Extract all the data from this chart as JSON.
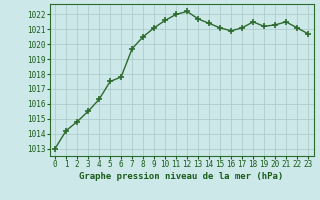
{
  "x": [
    0,
    1,
    2,
    3,
    4,
    5,
    6,
    7,
    8,
    9,
    10,
    11,
    12,
    13,
    14,
    15,
    16,
    17,
    18,
    19,
    20,
    21,
    22,
    23
  ],
  "y": [
    1013.0,
    1014.2,
    1014.8,
    1015.5,
    1016.3,
    1017.5,
    1017.8,
    1019.7,
    1020.5,
    1021.1,
    1021.6,
    1022.0,
    1022.2,
    1021.7,
    1021.4,
    1021.1,
    1020.9,
    1021.1,
    1021.5,
    1021.2,
    1021.3,
    1021.5,
    1021.1,
    1020.7
  ],
  "line_color": "#2d6a2d",
  "marker": "+",
  "markersize": 4.0,
  "linewidth": 1.0,
  "bg_color": "#cce8e8",
  "grid_color": "#aac8c8",
  "xlabel": "Graphe pression niveau de la mer (hPa)",
  "xlabel_color": "#1a5c1a",
  "tick_color": "#1a5c1a",
  "ylim": [
    1012.5,
    1022.7
  ],
  "yticks": [
    1013,
    1014,
    1015,
    1016,
    1017,
    1018,
    1019,
    1020,
    1021,
    1022
  ],
  "xticks": [
    0,
    1,
    2,
    3,
    4,
    5,
    6,
    7,
    8,
    9,
    10,
    11,
    12,
    13,
    14,
    15,
    16,
    17,
    18,
    19,
    20,
    21,
    22,
    23
  ],
  "xlim": [
    -0.5,
    23.5
  ],
  "font_family": "monospace",
  "tick_fontsize": 5.5,
  "xlabel_fontsize": 6.5
}
